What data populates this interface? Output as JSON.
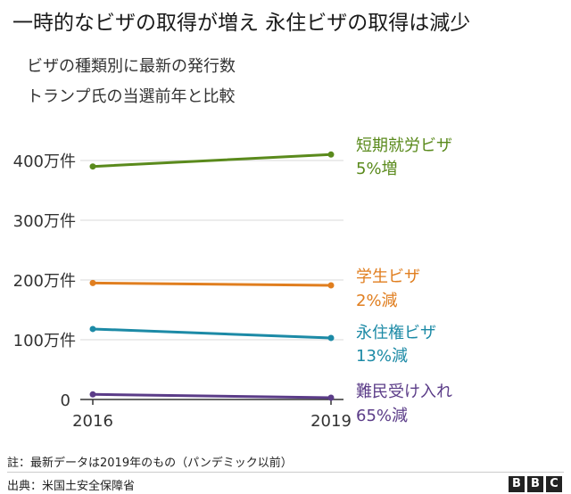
{
  "title": "一時的なビザの取得が増え 永住ビザの取得は減少",
  "subtitle_line1": "ビザの種類別に最新の発行数",
  "subtitle_line2": "トランプ氏の当選前年と比較",
  "note": "註：最新データは2019年のもの（パンデミック以前）",
  "source": "出典：米国土安全保障省",
  "brand": [
    "B",
    "B",
    "C"
  ],
  "chart_data": {
    "type": "line",
    "x": [
      "2016",
      "2019"
    ],
    "ylim": [
      0,
      4500000
    ],
    "yticks": [
      {
        "value": 0,
        "label": "0"
      },
      {
        "value": 1000000,
        "label": "100万件"
      },
      {
        "value": 2000000,
        "label": "200万件"
      },
      {
        "value": 3000000,
        "label": "300万件"
      },
      {
        "value": 4000000,
        "label": "400万件"
      }
    ],
    "series": [
      {
        "name": "短期就労ビザ",
        "change": "5%増",
        "color": "#5a8a1c",
        "values": [
          3900000,
          4100000
        ]
      },
      {
        "name": "学生ビザ",
        "change": "2%減",
        "color": "#e07e1f",
        "values": [
          1950000,
          1910000
        ]
      },
      {
        "name": "永住権ビザ",
        "change": "13%減",
        "color": "#1c8aa6",
        "values": [
          1180000,
          1030000
        ]
      },
      {
        "name": "難民受け入れ",
        "change": "65%減",
        "color": "#5b3c88",
        "values": [
          85000,
          30000
        ]
      }
    ]
  }
}
